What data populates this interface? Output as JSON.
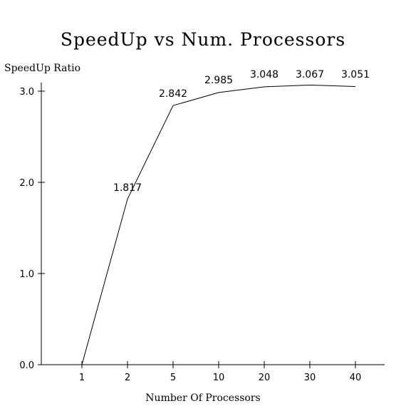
{
  "chart_data": {
    "type": "line",
    "title": "SpeedUp vs Num. Processors",
    "xlabel": "Number Of Processors",
    "ylabel": "SpeedUp Ratio",
    "categories": [
      "1",
      "2",
      "5",
      "10",
      "20",
      "30",
      "40"
    ],
    "series": [
      {
        "values": [
          0.0,
          1.817,
          2.842,
          2.985,
          3.048,
          3.067,
          3.051
        ]
      }
    ],
    "data_labels": [
      "",
      "1.817",
      "2.842",
      "2.985",
      "3.048",
      "3.067",
      "3.051"
    ],
    "y_ticks": [
      "0.0",
      "1.0",
      "2.0",
      "3.0"
    ],
    "ylim": [
      0,
      3.0
    ],
    "grid": false,
    "legend": "none"
  }
}
